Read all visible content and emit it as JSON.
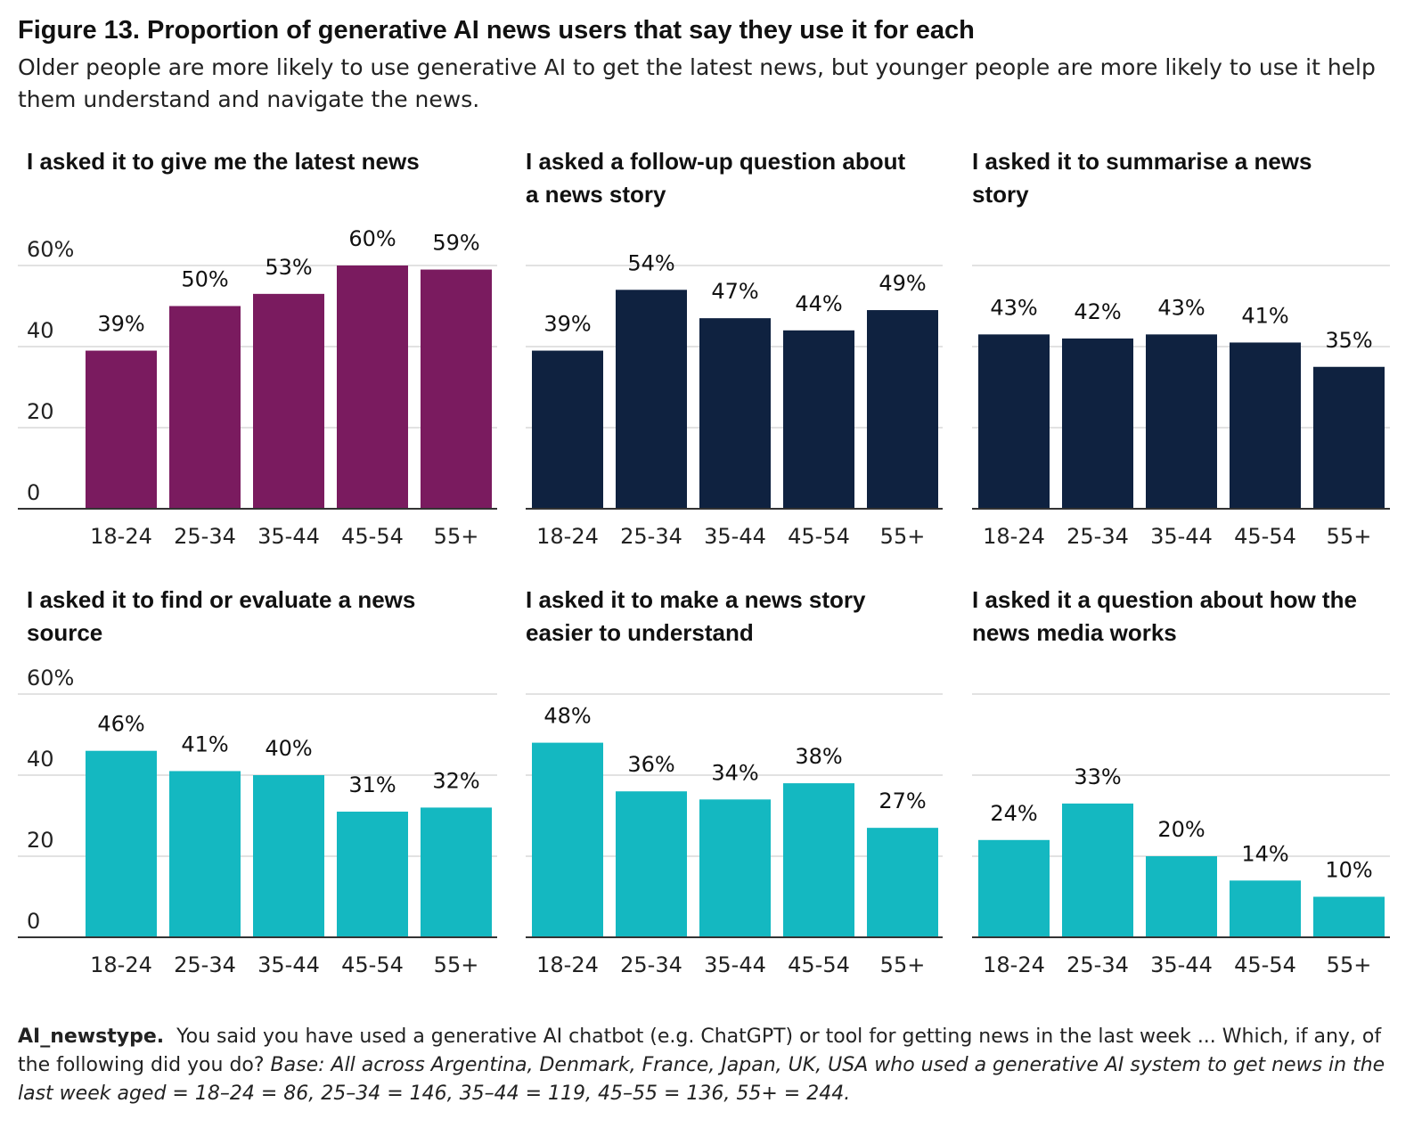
{
  "title": "Figure 13. Proportion of generative AI news users that say they use it for each",
  "subtitle": "Older people are more likely to use generative AI to get the latest news, but younger people are more likely to use it help them understand and navigate the news.",
  "footer": {
    "label": "AI_newstype.",
    "question": "You said you have used a generative AI chatbot (e.g. ChatGPT) or tool for getting news in the last week ... Which, if any, of the following did you do?",
    "base": "Base: All across Argentina, Denmark, France, Japan, UK, USA who used a generative AI system to get news in the last week aged = 18–24 = 86, 25–34 = 146, 35–44 = 119, 45–55 = 136, 55+ = 244."
  },
  "chart_data": [
    {
      "type": "bar",
      "title": [
        "I asked it to give me the latest news"
      ],
      "categories": [
        "18-24",
        "25-34",
        "35-44",
        "45-54",
        "55+"
      ],
      "values": [
        39,
        50,
        53,
        60,
        59
      ],
      "ylim": [
        0,
        60
      ],
      "yticks": [
        "0",
        "20",
        "40",
        "60%"
      ],
      "color": "#7a1b5f",
      "grid": true
    },
    {
      "type": "bar",
      "title": [
        "I asked a follow-up question about",
        "a news story"
      ],
      "categories": [
        "18-24",
        "25-34",
        "35-44",
        "45-54",
        "55+"
      ],
      "values": [
        39,
        54,
        47,
        44,
        49
      ],
      "ylim": [
        0,
        60
      ],
      "color": "#0f2240",
      "grid": true
    },
    {
      "type": "bar",
      "title": [
        "I asked it to summarise a news",
        "story"
      ],
      "categories": [
        "18-24",
        "25-34",
        "35-44",
        "45-54",
        "55+"
      ],
      "values": [
        43,
        42,
        43,
        41,
        35
      ],
      "ylim": [
        0,
        60
      ],
      "color": "#0f2240",
      "grid": true
    },
    {
      "type": "bar",
      "title": [
        "I asked it to find or evaluate a news",
        "source"
      ],
      "categories": [
        "18-24",
        "25-34",
        "35-44",
        "45-54",
        "55+"
      ],
      "values": [
        46,
        41,
        40,
        31,
        32
      ],
      "ylim": [
        0,
        60
      ],
      "yticks": [
        "0",
        "20",
        "40",
        "60%"
      ],
      "color": "#14b8c1",
      "grid": true
    },
    {
      "type": "bar",
      "title": [
        "I asked it to make a news story",
        "easier to understand"
      ],
      "categories": [
        "18-24",
        "25-34",
        "35-44",
        "45-54",
        "55+"
      ],
      "values": [
        48,
        36,
        34,
        38,
        27
      ],
      "ylim": [
        0,
        60
      ],
      "color": "#14b8c1",
      "grid": true
    },
    {
      "type": "bar",
      "title": [
        "I asked it a question about how the",
        "news media works"
      ],
      "categories": [
        "18-24",
        "25-34",
        "35-44",
        "45-54",
        "55+"
      ],
      "values": [
        24,
        33,
        20,
        14,
        10
      ],
      "ylim": [
        0,
        60
      ],
      "color": "#14b8c1",
      "grid": true
    }
  ]
}
